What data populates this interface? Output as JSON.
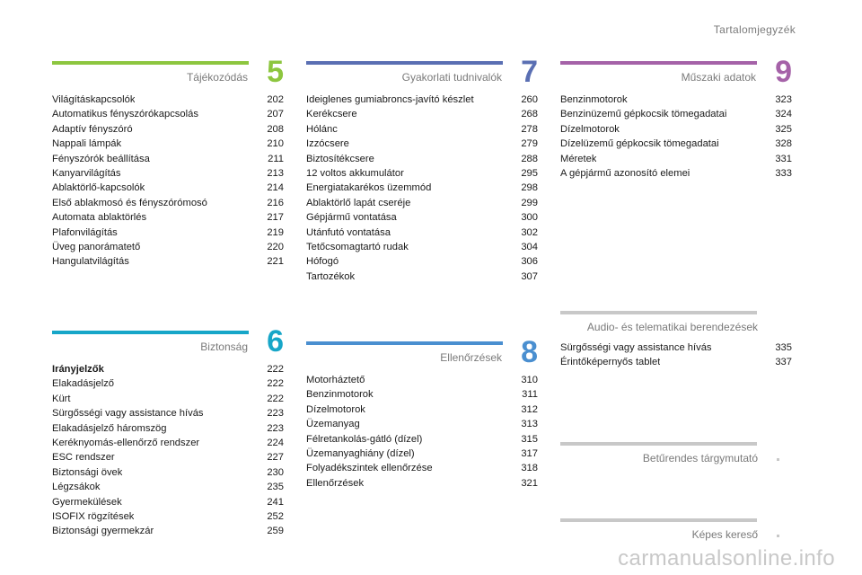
{
  "header": {
    "title": "Tartalomjegyzék"
  },
  "colors": {
    "s5": "#8dc63f",
    "s6": "#17a6c8",
    "s7": "#5a6fb3",
    "s8": "#4a8fd0",
    "s9": "#a562a8",
    "grey": "#c8c8c8"
  },
  "sections": {
    "s5": {
      "number": "5",
      "title": "Tájékozódás",
      "items": [
        {
          "label": "Világításkapcsolók",
          "page": "202"
        },
        {
          "label": "Automatikus fényszórókapcsolás",
          "page": "207"
        },
        {
          "label": "Adaptív fényszóró",
          "page": "208"
        },
        {
          "label": "Nappali lámpák",
          "page": "210"
        },
        {
          "label": "Fényszórók beállítása",
          "page": "211"
        },
        {
          "label": "Kanyarvilágítás",
          "page": "213"
        },
        {
          "label": "Ablaktörlő-kapcsolók",
          "page": "214"
        },
        {
          "label": "Első ablakmosó és fényszórómosó",
          "page": "216"
        },
        {
          "label": "Automata ablaktörlés",
          "page": "217"
        },
        {
          "label": "Plafonvilágítás",
          "page": "219"
        },
        {
          "label": "Üveg panorámatető",
          "page": "220"
        },
        {
          "label": "Hangulatvilágítás",
          "page": "221"
        }
      ]
    },
    "s6": {
      "number": "6",
      "title": "Biztonság",
      "items": [
        {
          "label": "Irányjelzők",
          "page": "222"
        },
        {
          "label": "Elakadásjelző",
          "page": "222"
        },
        {
          "label": "Kürt",
          "page": "222"
        },
        {
          "label": "Sürgősségi vagy assistance hívás",
          "page": "223"
        },
        {
          "label": "Elakadásjelző háromszög",
          "page": "223"
        },
        {
          "label": "Keréknyomás-ellenőrző rendszer",
          "page": "224"
        },
        {
          "label": "ESC rendszer",
          "page": "227"
        },
        {
          "label": "Biztonsági övek",
          "page": "230"
        },
        {
          "label": "Légzsákok",
          "page": "235"
        },
        {
          "label": "Gyermekülések",
          "page": "241"
        },
        {
          "label": "ISOFIX rögzítések",
          "page": "252"
        },
        {
          "label": "Biztonsági gyermekzár",
          "page": "259"
        }
      ]
    },
    "s7": {
      "number": "7",
      "title": "Gyakorlati tudnivalók",
      "items": [
        {
          "label": "Ideiglenes gumiabroncs-javító készlet",
          "page": "260"
        },
        {
          "label": "Kerékcsere",
          "page": "268"
        },
        {
          "label": "Hólánc",
          "page": "278"
        },
        {
          "label": "Izzócsere",
          "page": "279"
        },
        {
          "label": "Biztosítékcsere",
          "page": "288"
        },
        {
          "label": "12 voltos akkumulátor",
          "page": "295"
        },
        {
          "label": "Energiatakarékos üzemmód",
          "page": "298"
        },
        {
          "label": "Ablaktörlő lapát cseréje",
          "page": "299"
        },
        {
          "label": "Gépjármű vontatása",
          "page": "300"
        },
        {
          "label": "Utánfutó vontatása",
          "page": "302"
        },
        {
          "label": "Tetőcsomagtartó rudak",
          "page": "304"
        },
        {
          "label": "Hófogó",
          "page": "306"
        },
        {
          "label": "Tartozékok",
          "page": "307"
        }
      ]
    },
    "s8": {
      "number": "8",
      "title": "Ellenőrzések",
      "items": [
        {
          "label": "Motorháztető",
          "page": "310"
        },
        {
          "label": "Benzinmotorok",
          "page": "311"
        },
        {
          "label": "Dízelmotorok",
          "page": "312"
        },
        {
          "label": "Üzemanyag",
          "page": "313"
        },
        {
          "label": "Félretankolás-gátló (dízel)",
          "page": "315"
        },
        {
          "label": "Üzemanyaghiány (dízel)",
          "page": "317"
        },
        {
          "label": "Folyadékszintek ellenőrzése",
          "page": "318"
        },
        {
          "label": "Ellenőrzések",
          "page": "321"
        }
      ]
    },
    "s9": {
      "number": "9",
      "title": "Műszaki adatok",
      "items": [
        {
          "label": "Benzinmotorok",
          "page": "323"
        },
        {
          "label": "Benzinüzemű gépkocsik tömegadatai",
          "page": "324"
        },
        {
          "label": "Dízelmotorok",
          "page": "325"
        },
        {
          "label": "Dízelüzemű gépkocsik tömegadatai",
          "page": "328"
        },
        {
          "label": "Méretek",
          "page": "331"
        },
        {
          "label": "A gépjármű azonosító elemei",
          "page": "333"
        }
      ]
    },
    "audio": {
      "title": "Audio- és telematikai berendezések",
      "items": [
        {
          "label": "Sürgősségi vagy assistance hívás",
          "page": "335"
        },
        {
          "label": "Érintőképernyős tablet",
          "page": "337"
        }
      ]
    },
    "index": {
      "title": "Betűrendes tárgymutató"
    },
    "visual": {
      "title": "Képes kereső"
    }
  },
  "watermark": "carmanualsonline.info"
}
